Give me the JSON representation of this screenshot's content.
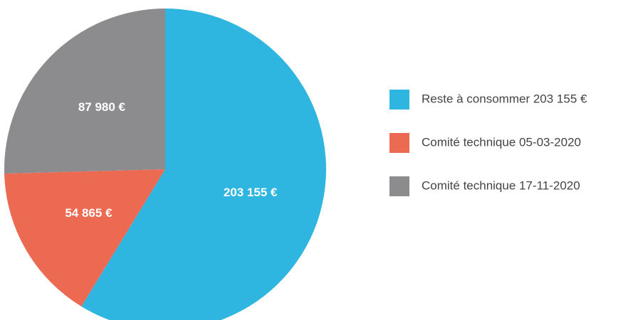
{
  "chart_data": {
    "type": "pie",
    "categories": [
      "Reste à consommer 203 155 €",
      "Comité technique 05-03-2020",
      "Comité technique 17-11-2020"
    ],
    "values": [
      203155,
      54865,
      87980
    ],
    "value_labels": [
      "203 155 €",
      "54 865 €",
      "87 980 €"
    ],
    "colors": [
      "#2eb5e0",
      "#ec6a52",
      "#8c8c8e"
    ],
    "legend": "right"
  }
}
